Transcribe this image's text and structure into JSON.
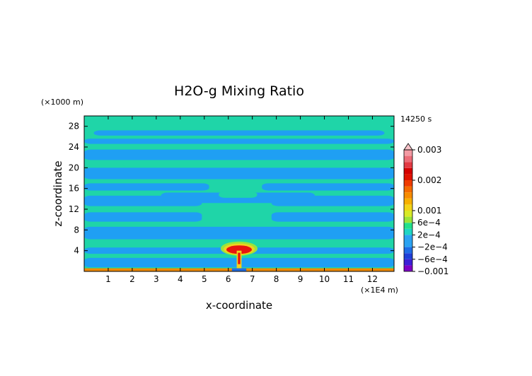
{
  "chart_data": {
    "type": "heatmap",
    "title": "H2O-g Mixing Ratio",
    "xlabel": "x-coordinate",
    "ylabel": "z-coordinate",
    "x_unit": "(×1E4 m)",
    "y_unit": "(×1000 m)",
    "time_label": "14250 s",
    "xlim": [
      0,
      12.9
    ],
    "ylim": [
      0,
      30
    ],
    "x_ticks": [
      1,
      2,
      3,
      4,
      5,
      6,
      7,
      8,
      9,
      10,
      11,
      12
    ],
    "y_ticks": [
      4,
      8,
      12,
      16,
      20,
      24,
      28
    ],
    "colorbar": {
      "labels": [
        "0.003",
        "0.002",
        "0.001",
        "6e−4",
        "2e−4",
        "−2e−4",
        "−6e−4",
        "−0.001"
      ],
      "label_values": [
        0.003,
        0.002,
        0.001,
        0.0006,
        0.0002,
        -0.0002,
        -0.0006,
        -0.001
      ],
      "levels": [
        -0.001,
        -0.0008,
        -0.0006,
        -0.0004,
        -0.0002,
        0.0002,
        0.0004,
        0.0006,
        0.0008,
        0.001,
        0.0012,
        0.0014,
        0.0016,
        0.0018,
        0.002,
        0.0022,
        0.0024,
        0.0026,
        0.0028,
        0.003
      ],
      "colors": [
        "#7d00c4",
        "#3c1fd6",
        "#1f3fd8",
        "#1f6de6",
        "#2ba3f2",
        "#1fd6c4",
        "#22e08c",
        "#9be43a",
        "#d8ea28",
        "#f3d418",
        "#f7b000",
        "#f78c00",
        "#f46a00",
        "#ef3b00",
        "#e01200",
        "#d40000",
        "#e23a44",
        "#ec6c78",
        "#f39aa3",
        "#f7c2c8"
      ]
    },
    "field_colors": {
      "background": "#1fd5a8",
      "blue_band": "#1f9ff3",
      "core_red": "#e8140e",
      "core_yellow": "#f0d21e",
      "surface_orange": "#f08a00"
    }
  }
}
